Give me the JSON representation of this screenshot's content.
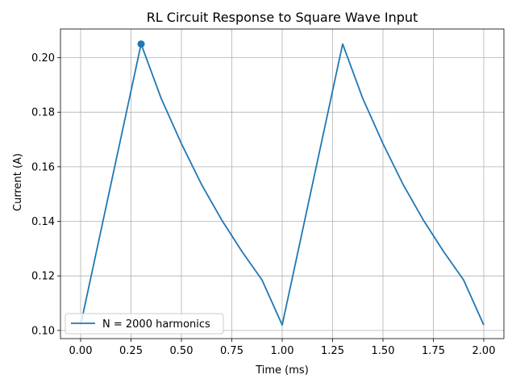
{
  "chart_data": {
    "type": "line",
    "title": "RL Circuit Response to Square Wave Input",
    "xlabel": "Time (ms)",
    "ylabel": "Current (A)",
    "xlim": [
      -0.1,
      2.1
    ],
    "ylim": [
      0.097,
      0.2105
    ],
    "x_ticks": [
      0.0,
      0.25,
      0.5,
      0.75,
      1.0,
      1.25,
      1.5,
      1.75,
      2.0
    ],
    "x_tick_labels": [
      "0.00",
      "0.25",
      "0.50",
      "0.75",
      "1.00",
      "1.25",
      "1.50",
      "1.75",
      "2.00"
    ],
    "y_ticks": [
      0.1,
      0.12,
      0.14,
      0.16,
      0.18,
      0.2
    ],
    "y_tick_labels": [
      "0.10",
      "0.12",
      "0.14",
      "0.16",
      "0.18",
      "0.20"
    ],
    "grid": true,
    "legend_position": "lower-left",
    "color": "#1f77b4",
    "series": [
      {
        "name": "N = 2000 harmonics",
        "x": [
          0.0,
          0.3,
          0.4,
          0.5,
          0.6,
          0.7,
          0.8,
          0.9,
          1.0,
          1.3,
          1.4,
          1.5,
          1.6,
          1.7,
          1.8,
          1.9,
          2.0
        ],
        "values": [
          0.102,
          0.205,
          0.185,
          0.1685,
          0.1535,
          0.1405,
          0.129,
          0.1185,
          0.102,
          0.205,
          0.185,
          0.1685,
          0.1535,
          0.1405,
          0.129,
          0.1185,
          0.102
        ]
      }
    ],
    "marker_point": {
      "x": 0.3,
      "y": 0.205
    }
  }
}
